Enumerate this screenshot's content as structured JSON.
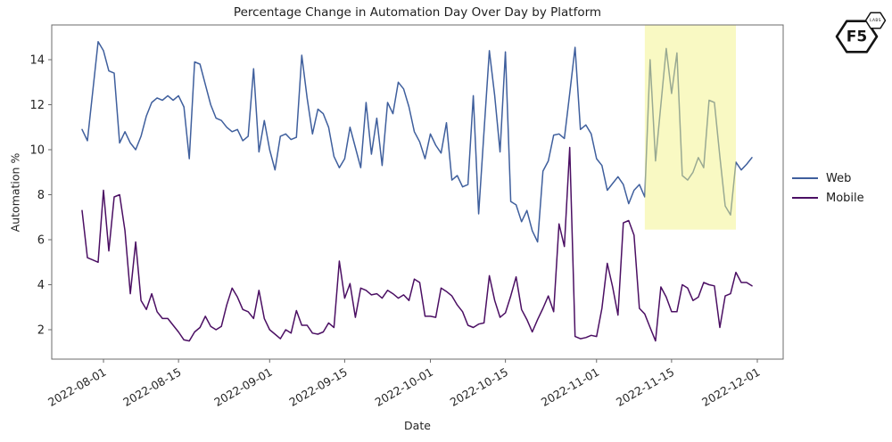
{
  "branding": {
    "logo_main": "F5",
    "logo_sub": "LABS"
  },
  "chart_data": {
    "type": "line",
    "title": "Percentage Change in Automation Day Over Day by Platform",
    "xlabel": "Date",
    "ylabel": "Automation %",
    "x_start_date": "2022-07-28",
    "x_end_date": "2022-11-30",
    "x_tick_labels": [
      "2022-08-01",
      "2022-08-15",
      "2022-09-01",
      "2022-09-15",
      "2022-10-01",
      "2022-10-15",
      "2022-11-01",
      "2022-11-15",
      "2022-12-01"
    ],
    "y_tick_labels": [
      "2",
      "4",
      "6",
      "8",
      "10",
      "12",
      "14"
    ],
    "y_ticks": [
      2,
      4,
      6,
      8,
      10,
      12,
      14
    ],
    "ylim": [
      0.7,
      15.5
    ],
    "grid": false,
    "legend_position": "right-outside",
    "axis_color": "#6b6b6b",
    "text_color": "#262626",
    "highlight_region": {
      "start": "2022-11-10",
      "end": "2022-11-27",
      "value_bottom": 6.45,
      "color": "#f3f387",
      "opacity": 0.5
    },
    "series": [
      {
        "name": "Web",
        "color": "#3f5f9d",
        "values": [
          10.9,
          10.4,
          12.6,
          14.8,
          14.4,
          13.5,
          13.4,
          10.3,
          10.8,
          10.3,
          10.0,
          10.6,
          11.5,
          12.1,
          12.3,
          12.2,
          12.4,
          12.2,
          12.4,
          11.9,
          9.6,
          13.9,
          13.8,
          12.9,
          12.0,
          11.4,
          11.3,
          11.0,
          10.8,
          10.9,
          10.4,
          10.6,
          13.6,
          9.9,
          11.3,
          10.0,
          9.1,
          10.6,
          10.7,
          10.45,
          10.55,
          14.2,
          12.3,
          10.7,
          11.8,
          11.6,
          11.0,
          9.7,
          9.2,
          9.6,
          11.0,
          10.1,
          9.2,
          12.1,
          9.8,
          11.4,
          9.3,
          12.1,
          11.6,
          13.0,
          12.7,
          11.9,
          10.8,
          10.35,
          9.6,
          10.7,
          10.2,
          9.85,
          11.2,
          8.65,
          8.85,
          8.35,
          8.45,
          12.4,
          7.15,
          10.8,
          14.4,
          12.4,
          9.9,
          14.35,
          7.7,
          7.55,
          6.8,
          7.3,
          6.4,
          5.9,
          9.05,
          9.5,
          10.65,
          10.7,
          10.5,
          12.5,
          14.55,
          10.9,
          11.1,
          10.7,
          9.6,
          9.3,
          8.2,
          8.5,
          8.8,
          8.45,
          7.6,
          8.2,
          8.45,
          7.9,
          14.0,
          9.5,
          12.0,
          14.5,
          12.5,
          14.3,
          8.85,
          8.65,
          9.0,
          9.65,
          9.2,
          12.2,
          12.1,
          9.7,
          7.5,
          7.1,
          9.45,
          9.1,
          9.35,
          9.65
        ]
      },
      {
        "name": "Mobile",
        "color": "#4b0f63",
        "values": [
          7.3,
          5.2,
          5.1,
          5.0,
          8.2,
          5.5,
          7.9,
          8.0,
          6.4,
          3.6,
          5.9,
          3.3,
          2.9,
          3.6,
          2.8,
          2.5,
          2.5,
          2.2,
          1.9,
          1.55,
          1.5,
          1.9,
          2.1,
          2.6,
          2.15,
          2.0,
          2.15,
          3.1,
          3.85,
          3.45,
          2.9,
          2.8,
          2.5,
          3.75,
          2.5,
          2.0,
          1.8,
          1.6,
          2.0,
          1.85,
          2.85,
          2.2,
          2.2,
          1.85,
          1.8,
          1.9,
          2.3,
          2.1,
          5.05,
          3.4,
          4.05,
          2.55,
          3.85,
          3.75,
          3.55,
          3.6,
          3.4,
          3.75,
          3.6,
          3.4,
          3.55,
          3.3,
          4.25,
          4.1,
          2.6,
          2.6,
          2.55,
          3.85,
          3.7,
          3.5,
          3.1,
          2.8,
          2.2,
          2.1,
          2.25,
          2.3,
          4.4,
          3.3,
          2.55,
          2.75,
          3.5,
          4.35,
          2.9,
          2.45,
          1.9,
          2.45,
          2.95,
          3.5,
          2.8,
          6.7,
          5.7,
          10.1,
          1.7,
          1.6,
          1.65,
          1.75,
          1.7,
          2.95,
          4.95,
          3.9,
          2.65,
          6.75,
          6.85,
          6.2,
          2.95,
          2.7,
          2.1,
          1.5,
          3.9,
          3.45,
          2.8,
          2.8,
          4.0,
          3.85,
          3.3,
          3.45,
          4.1,
          4.0,
          3.95,
          2.1,
          3.5,
          3.6,
          4.55,
          4.1,
          4.1,
          3.95
        ]
      }
    ]
  }
}
